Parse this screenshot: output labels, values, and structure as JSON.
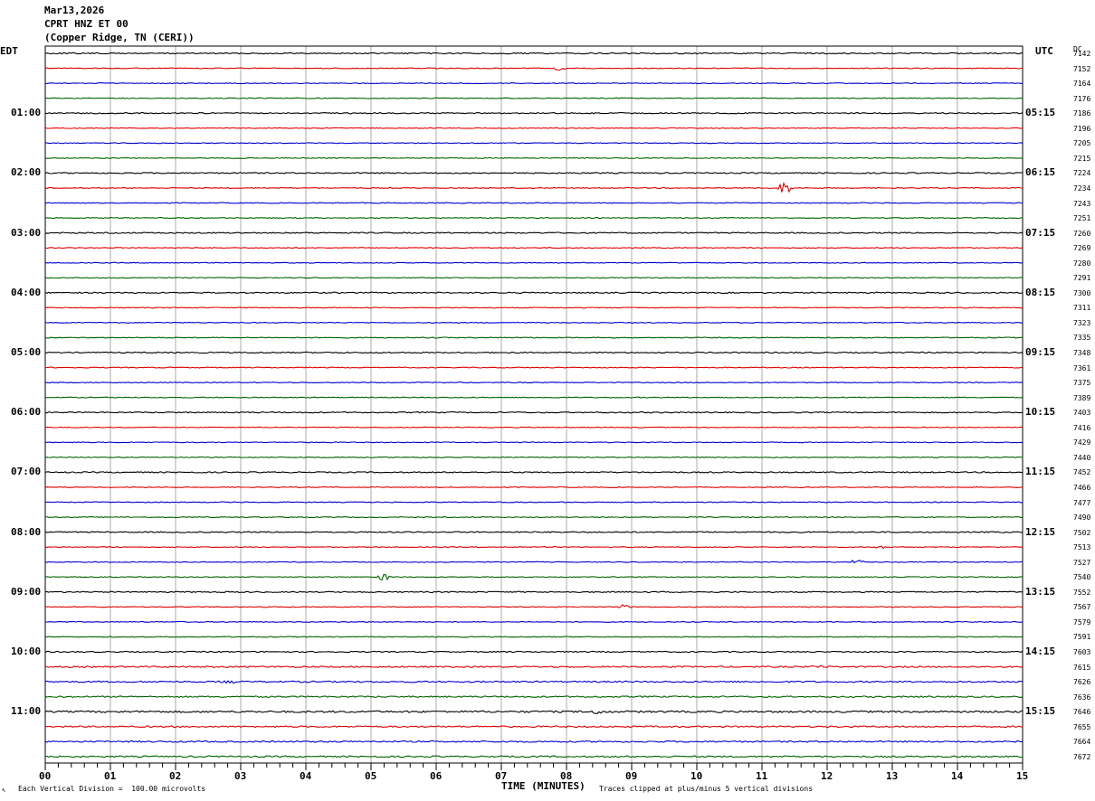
{
  "header": {
    "date": "Mar13,2026",
    "station": "CPRT HNZ ET 00",
    "location": "(Copper Ridge, TN (CERI))"
  },
  "left_tz": "EDT",
  "right_tz": "UTC",
  "dc_header": "DC",
  "footer": {
    "scale_note": "Each Vertical Division =  100.00 microvolts",
    "clip_note": "Traces clipped at plus/minus 5 vertical divisions",
    "corner_mark": "↖"
  },
  "colors": {
    "trace_cycle": [
      "#000000",
      "#e00000",
      "#0000d0",
      "#006400"
    ],
    "grid": "#000000"
  },
  "chart_data": {
    "type": "line",
    "title": "CPRT HNZ ET 00",
    "xlabel": "TIME (MINUTES)",
    "ylabel": "",
    "xlim": [
      0,
      15
    ],
    "x_ticks": [
      "00",
      "01",
      "02",
      "03",
      "04",
      "05",
      "06",
      "07",
      "08",
      "09",
      "10",
      "11",
      "12",
      "13",
      "14",
      "15"
    ],
    "grid": true,
    "trace_count": 48,
    "left_hour_labels": [
      "01:00",
      "02:00",
      "03:00",
      "04:00",
      "05:00",
      "06:00",
      "07:00",
      "08:00",
      "09:00",
      "10:00",
      "11:00"
    ],
    "right_hour_labels": [
      "05:15",
      "06:15",
      "07:15",
      "08:15",
      "09:15",
      "10:15",
      "11:15",
      "12:15",
      "13:15",
      "14:15",
      "15:15"
    ],
    "dc_offsets": [
      "7142",
      "7152",
      "7164",
      "7176",
      "7186",
      "7196",
      "7205",
      "7215",
      "7224",
      "7234",
      "7243",
      "7251",
      "7260",
      "7269",
      "7280",
      "7291",
      "7300",
      "7311",
      "7323",
      "7335",
      "7348",
      "7361",
      "7375",
      "7389",
      "7403",
      "7416",
      "7429",
      "7440",
      "7452",
      "7466",
      "7477",
      "7490",
      "7502",
      "7513",
      "7527",
      "7540",
      "7552",
      "7567",
      "7579",
      "7591",
      "7603",
      "7615",
      "7626",
      "7636",
      "7646",
      "7655",
      "7664",
      "7672"
    ],
    "events": [
      {
        "trace": 1,
        "minute": 7.9,
        "amp": 3
      },
      {
        "trace": 9,
        "minute": 11.35,
        "amp": 8
      },
      {
        "trace": 33,
        "minute": 12.8,
        "amp": 2
      },
      {
        "trace": 34,
        "minute": 12.45,
        "amp": 4
      },
      {
        "trace": 35,
        "minute": 5.2,
        "amp": 5
      },
      {
        "trace": 37,
        "minute": 8.9,
        "amp": 3
      },
      {
        "trace": 41,
        "minute": 11.9,
        "amp": 3
      },
      {
        "trace": 42,
        "minute": 2.8,
        "amp": 3
      },
      {
        "trace": 44,
        "minute": 8.45,
        "amp": 3
      },
      {
        "trace": 46,
        "minute": 14.7,
        "amp": 3
      }
    ]
  }
}
